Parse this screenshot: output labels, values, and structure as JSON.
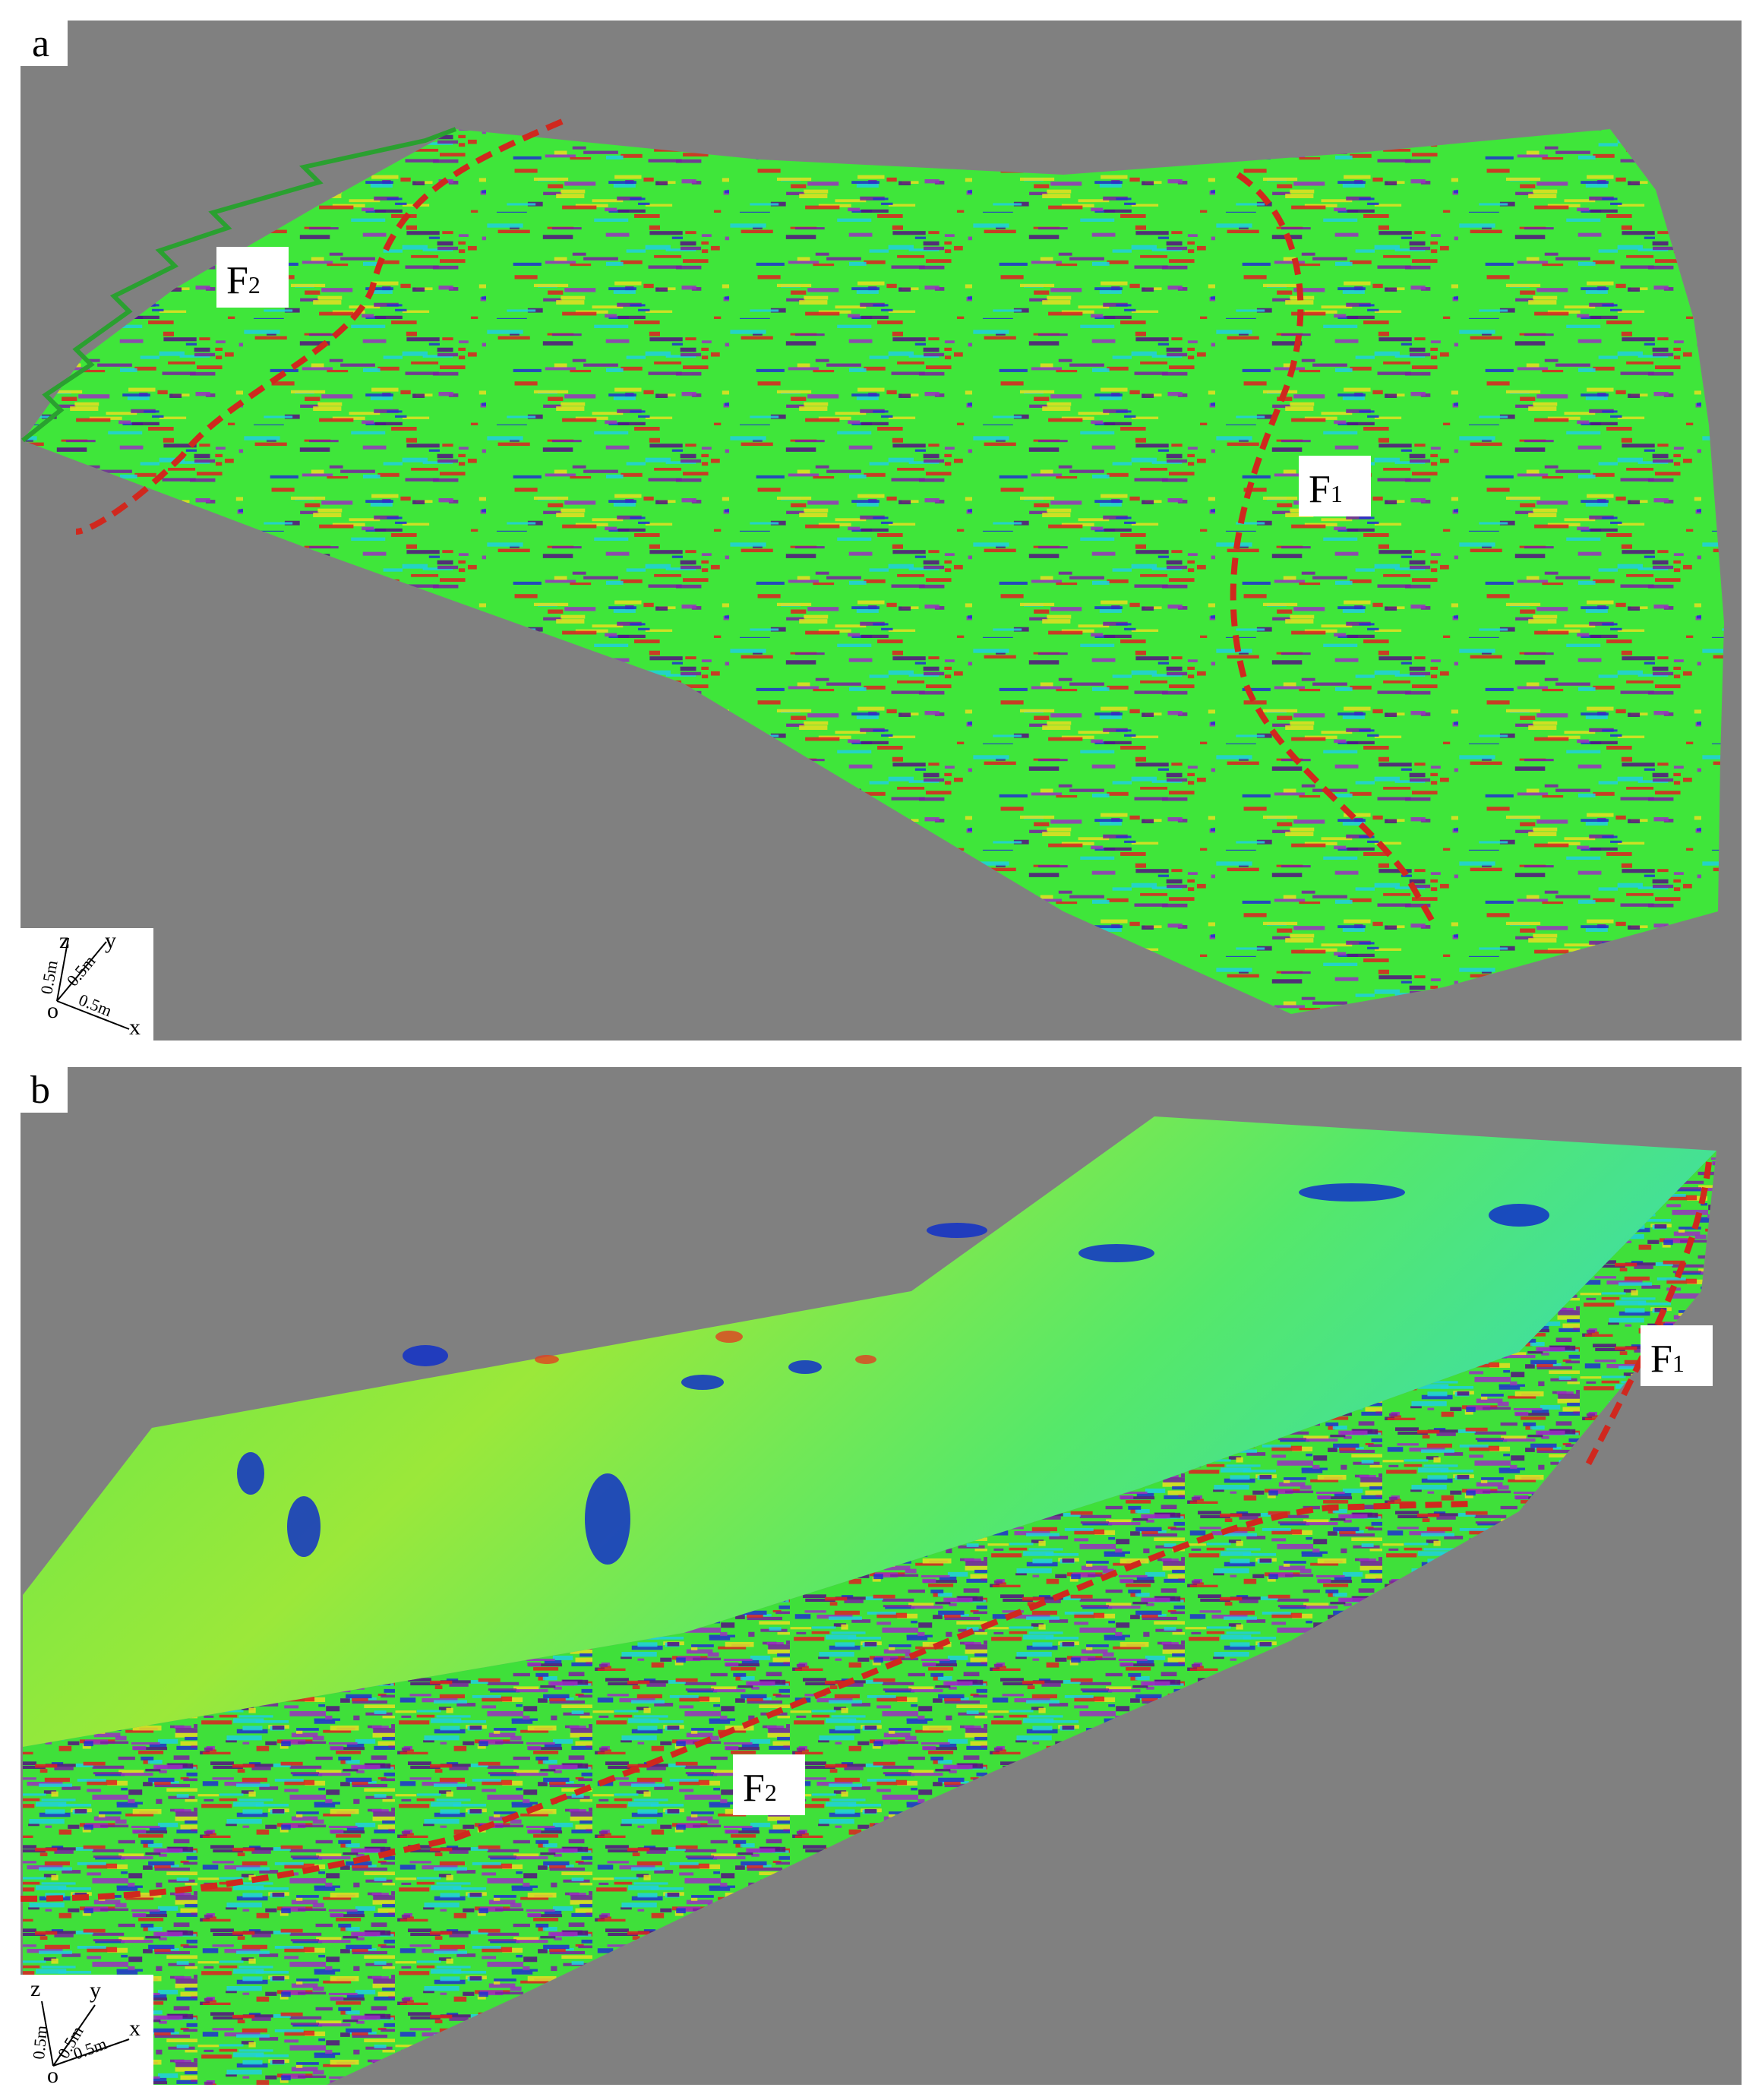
{
  "panels": [
    {
      "label": "a",
      "faults": [
        {
          "name": "F",
          "sub": "2"
        },
        {
          "name": "F",
          "sub": "1"
        }
      ],
      "axes": {
        "z": "z",
        "y": "y",
        "x": "x",
        "origin": "o",
        "scales": [
          "0.5m",
          "0.5m",
          "0.5m"
        ]
      }
    },
    {
      "label": "b",
      "faults": [
        {
          "name": "F",
          "sub": "2"
        },
        {
          "name": "F",
          "sub": "1"
        }
      ],
      "axes": {
        "z": "z",
        "y": "y",
        "x": "x",
        "origin": "o",
        "scales": [
          "0.5m",
          "0.5m",
          "0.5m"
        ]
      }
    }
  ]
}
